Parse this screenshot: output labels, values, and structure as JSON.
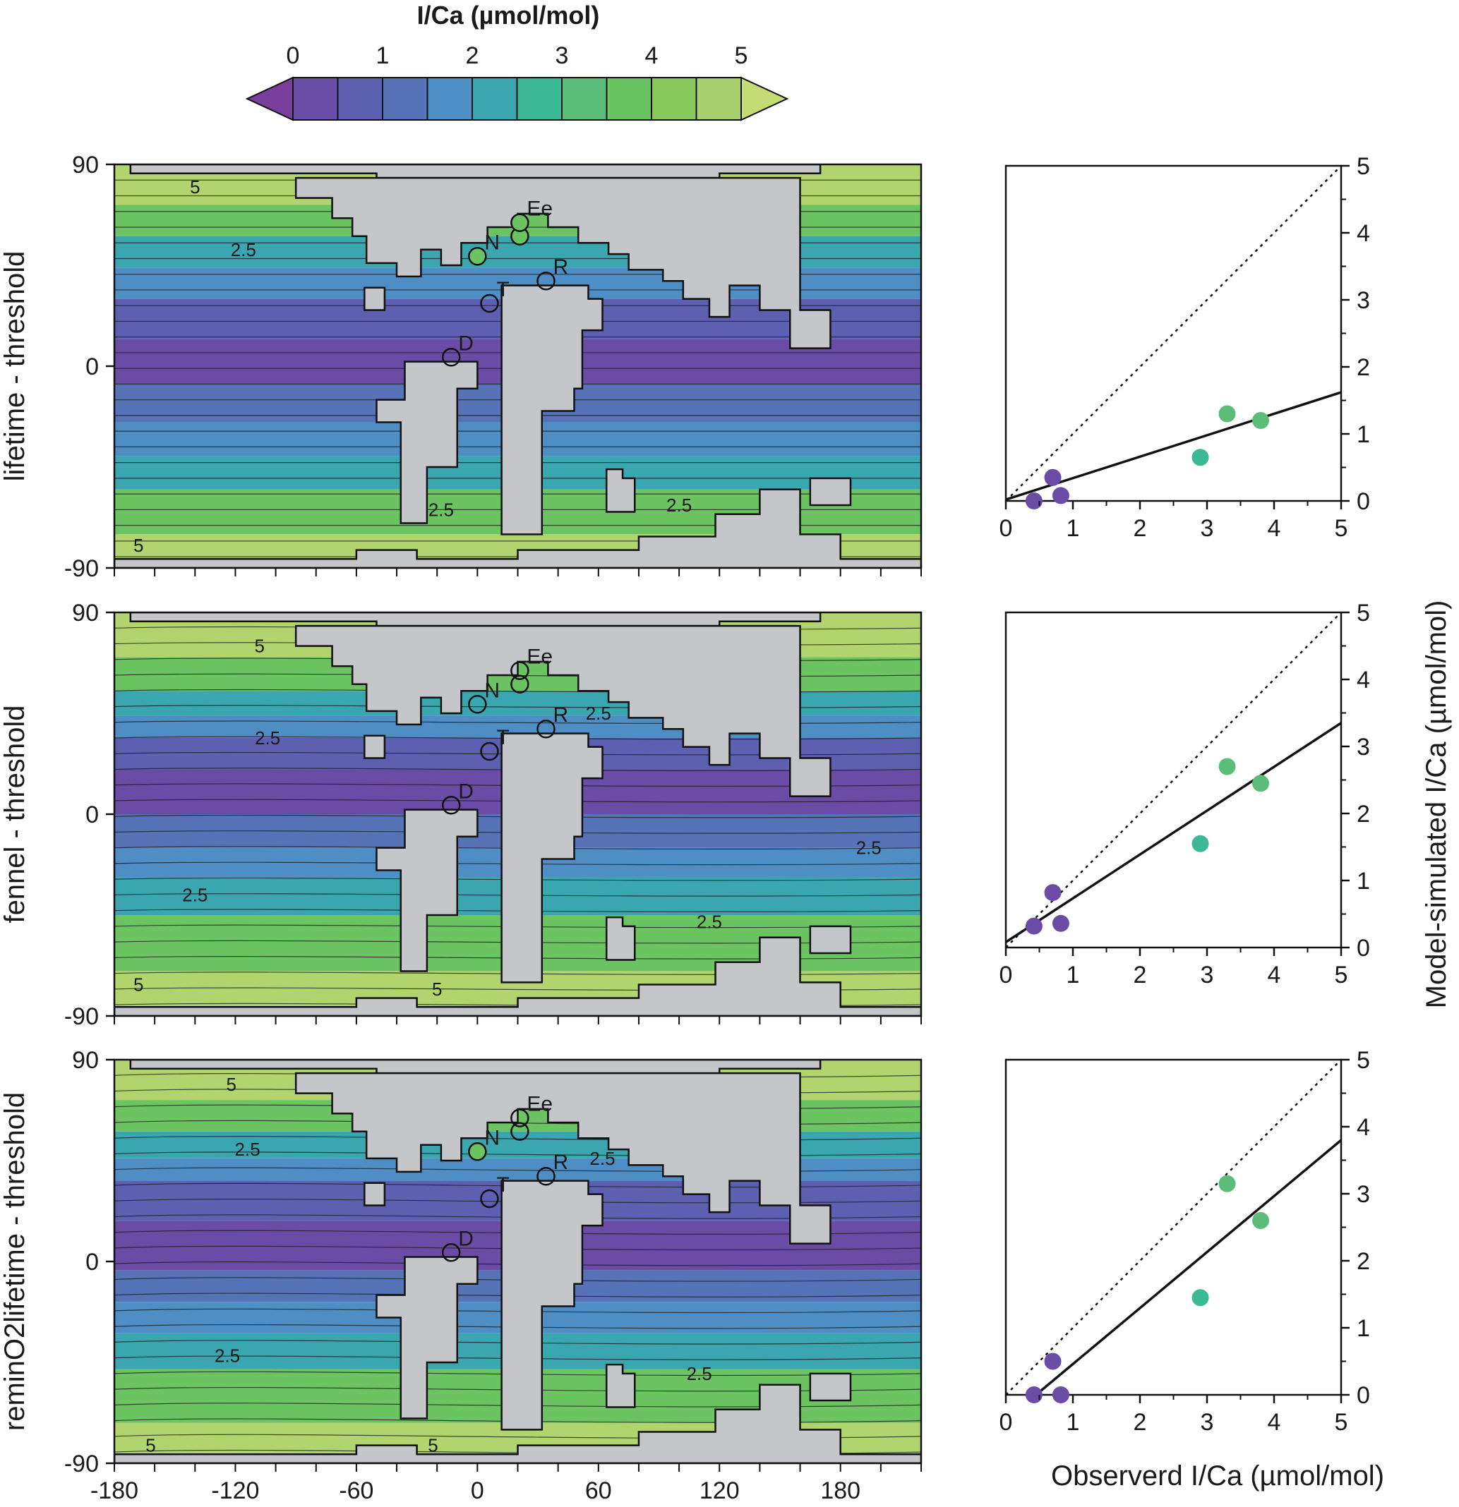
{
  "colorbar": {
    "title": "I/Ca (µmol/mol)",
    "ticks": [
      "0",
      "1",
      "2",
      "3",
      "4",
      "5"
    ],
    "colors": [
      "#7a3e9d",
      "#6b4ea8",
      "#5d5fb0",
      "#5673b8",
      "#4e8ec5",
      "#3aa6b0",
      "#3bb894",
      "#5bbd78",
      "#6cc362",
      "#8ac85e",
      "#a8d06e",
      "#c5dc75"
    ]
  },
  "colors": {
    "land": "#c4c6ca",
    "purple": "#6a4ba6",
    "blue": "#4e8ec5",
    "teal": "#3aa6b0",
    "green": "#6cc362",
    "lightgreen": "#b2d46e"
  },
  "map_axes": {
    "x_ticks": [
      "-180",
      "-120",
      "-60",
      "0",
      "60",
      "120",
      "180"
    ],
    "y_ticks": [
      "90",
      "0",
      "-90"
    ]
  },
  "rows": [
    {
      "ylabel": "lifetime - threshold",
      "contour_labels": [
        "5",
        "2.5",
        "2.5",
        "2.5",
        "5"
      ],
      "sites": [
        {
          "label": "Ee",
          "fill": "#6cc362"
        },
        {
          "label": "N",
          "fill": "#6cc362"
        },
        {
          "label": "R",
          "fill": "none"
        },
        {
          "label": "T",
          "fill": "none"
        },
        {
          "label": "D",
          "fill": "none"
        }
      ]
    },
    {
      "ylabel": "fennel - threshold",
      "contour_labels": [
        "5",
        "2.5",
        "2.5",
        "2.5",
        "2.5",
        "2.5",
        "5",
        "5"
      ],
      "sites": [
        {
          "label": "Ee",
          "fill": "none"
        },
        {
          "label": "N",
          "fill": "none"
        },
        {
          "label": "R",
          "fill": "none"
        },
        {
          "label": "T",
          "fill": "none"
        },
        {
          "label": "D",
          "fill": "none"
        }
      ]
    },
    {
      "ylabel": "reminO2lifetime - threshold",
      "contour_labels": [
        "5",
        "2.5",
        "2.5",
        "2.5",
        "2.5",
        "5",
        "5"
      ],
      "sites": [
        {
          "label": "Ee",
          "fill": "none"
        },
        {
          "label": "N",
          "fill": "#6cc362"
        },
        {
          "label": "R",
          "fill": "none"
        },
        {
          "label": "T",
          "fill": "none"
        },
        {
          "label": "D",
          "fill": "none"
        }
      ]
    }
  ],
  "scatter_axes": {
    "xlabel": "Observerd I/Ca (µmol/mol)",
    "ylabel": "Model-simulated I/Ca (µmol/mol)",
    "ticks": [
      "0",
      "1",
      "2",
      "3",
      "4",
      "5"
    ]
  },
  "chart_data": [
    {
      "type": "scatter",
      "panel": "lifetime - threshold",
      "xlim": [
        0,
        5
      ],
      "ylim": [
        0,
        5
      ],
      "points": [
        {
          "x": 0.42,
          "y": 0.0,
          "color": "#6a4ba6"
        },
        {
          "x": 0.7,
          "y": 0.35,
          "color": "#6a4ba6"
        },
        {
          "x": 0.82,
          "y": 0.08,
          "color": "#6a4ba6"
        },
        {
          "x": 2.9,
          "y": 0.65,
          "color": "#3bb894"
        },
        {
          "x": 3.3,
          "y": 1.3,
          "color": "#5bbd78"
        },
        {
          "x": 3.8,
          "y": 1.2,
          "color": "#5bbd78"
        }
      ],
      "fit_line": [
        [
          0,
          0.02
        ],
        [
          5,
          1.62
        ]
      ],
      "one_to_one": [
        [
          0,
          0
        ],
        [
          5,
          5
        ]
      ]
    },
    {
      "type": "scatter",
      "panel": "fennel - threshold",
      "xlim": [
        0,
        5
      ],
      "ylim": [
        0,
        5
      ],
      "points": [
        {
          "x": 0.42,
          "y": 0.32,
          "color": "#6a4ba6"
        },
        {
          "x": 0.7,
          "y": 0.82,
          "color": "#6a4ba6"
        },
        {
          "x": 0.82,
          "y": 0.36,
          "color": "#6a4ba6"
        },
        {
          "x": 2.9,
          "y": 1.55,
          "color": "#3bb894"
        },
        {
          "x": 3.3,
          "y": 2.7,
          "color": "#5bbd78"
        },
        {
          "x": 3.8,
          "y": 2.45,
          "color": "#5bbd78"
        }
      ],
      "fit_line": [
        [
          0,
          0.08
        ],
        [
          5,
          3.35
        ]
      ],
      "one_to_one": [
        [
          0,
          0
        ],
        [
          5,
          5
        ]
      ]
    },
    {
      "type": "scatter",
      "panel": "reminO2lifetime - threshold",
      "xlim": [
        0,
        5
      ],
      "ylim": [
        0,
        5
      ],
      "points": [
        {
          "x": 0.42,
          "y": 0.0,
          "color": "#6a4ba6"
        },
        {
          "x": 0.7,
          "y": 0.5,
          "color": "#6a4ba6"
        },
        {
          "x": 0.82,
          "y": 0.0,
          "color": "#6a4ba6"
        },
        {
          "x": 2.9,
          "y": 1.45,
          "color": "#3bb894"
        },
        {
          "x": 3.3,
          "y": 3.15,
          "color": "#5bbd78"
        },
        {
          "x": 3.8,
          "y": 2.6,
          "color": "#5bbd78"
        }
      ],
      "fit_line": [
        [
          0.45,
          0.0
        ],
        [
          5,
          3.8
        ]
      ],
      "one_to_one": [
        [
          0,
          0
        ],
        [
          5,
          5
        ]
      ]
    }
  ]
}
